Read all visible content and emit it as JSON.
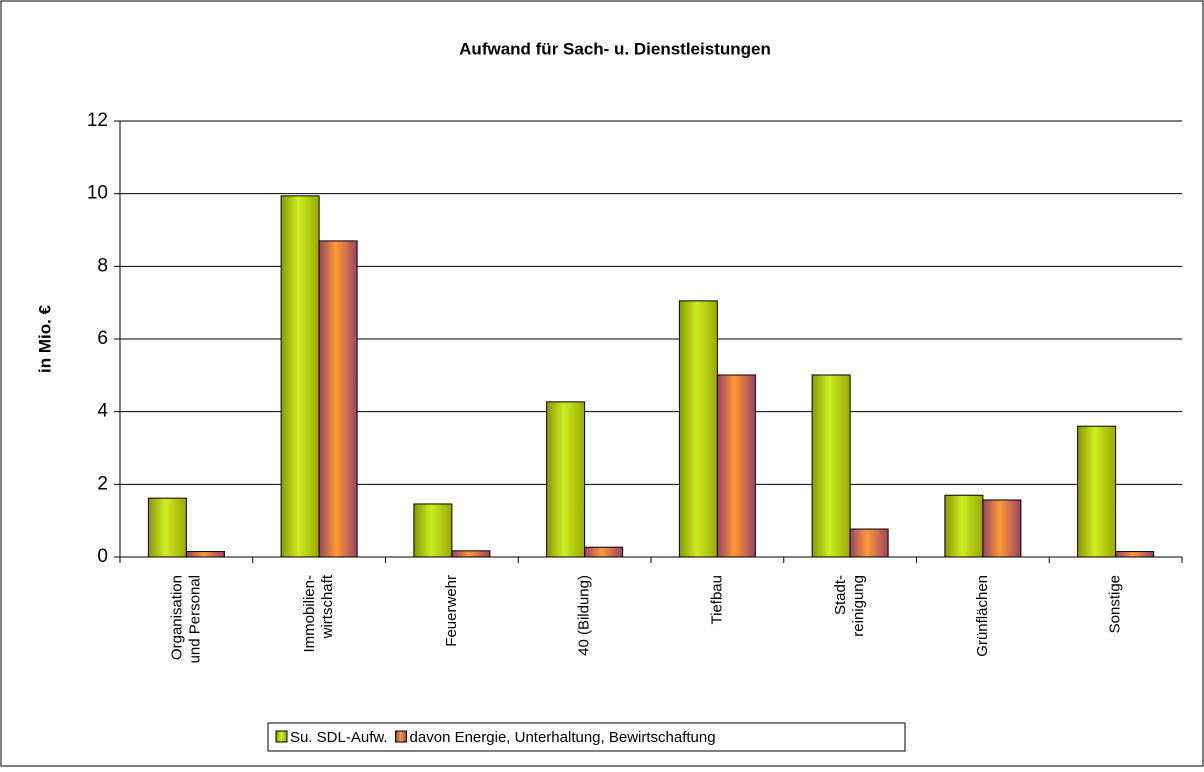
{
  "chart_data": {
    "type": "bar",
    "title": "Aufwand für Sach- u. Dienstleistungen",
    "y_label": "in Mio. €",
    "categories": [
      "Organisation\nund Personal",
      "Immobilien-\nwirtschaft",
      "Feuerwehr",
      "40 (Bildung)",
      "Tiefbau",
      "Stadt-\nreinigung",
      "Grünflächen",
      "Sonstige"
    ],
    "series": [
      {
        "name": "Su. SDL-Aufw.",
        "color": "#ccee22",
        "values": [
          1.62,
          9.94,
          1.46,
          4.27,
          7.05,
          5.01,
          1.7,
          3.6
        ]
      },
      {
        "name": "davon Energie, Unterhaltung, Bewirtschaftung",
        "color": "#ff9933",
        "values": [
          0.15,
          8.7,
          0.17,
          0.27,
          5.01,
          0.77,
          1.57,
          0.15
        ]
      }
    ],
    "ylim": [
      0,
      12
    ],
    "yticks": [
      0,
      2,
      4,
      6,
      8,
      10,
      12
    ],
    "grid": true,
    "legend": "bottom"
  }
}
